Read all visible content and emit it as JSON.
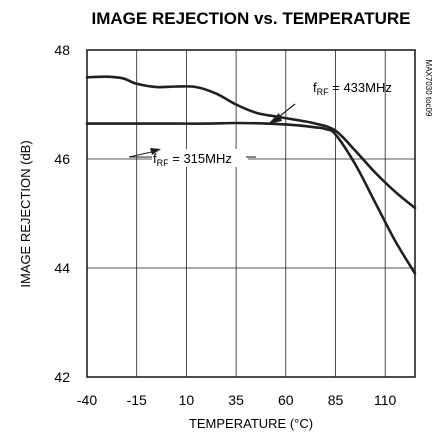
{
  "chart_data": {
    "type": "line",
    "title": "IMAGE REJECTION vs. TEMPERATURE",
    "xlabel": "TEMPERATURE (°C)",
    "ylabel": "IMAGE REJECTION (dB)",
    "xlim": [
      -40,
      125
    ],
    "ylim": [
      42,
      48
    ],
    "x_ticks": [
      -40,
      -15,
      10,
      35,
      60,
      85,
      110
    ],
    "x_tick_labels": [
      "-40",
      "-15",
      "10",
      "35",
      "60",
      "85",
      "110"
    ],
    "y_ticks": [
      42,
      44,
      46,
      48
    ],
    "y_tick_labels": [
      "42",
      "44",
      "46",
      "48"
    ],
    "grid": true,
    "series": [
      {
        "name": "fRF = 433MHz",
        "x": [
          -40,
          -30,
          -22,
          -15,
          -5,
          5,
          15,
          25,
          35,
          45,
          55,
          65,
          75,
          85,
          95,
          105,
          115,
          125
        ],
        "y": [
          47.5,
          47.51,
          47.48,
          47.38,
          47.32,
          47.33,
          47.32,
          47.2,
          47.0,
          46.85,
          46.78,
          46.72,
          46.65,
          46.52,
          46.15,
          45.75,
          45.4,
          45.1
        ]
      },
      {
        "name": "fRF = 315MHz",
        "x": [
          -40,
          -25,
          -10,
          5,
          20,
          35,
          50,
          65,
          75,
          80,
          85,
          95,
          105,
          115,
          125
        ],
        "y": [
          46.65,
          46.65,
          46.65,
          46.65,
          46.65,
          46.66,
          46.65,
          46.62,
          46.58,
          46.55,
          46.45,
          45.9,
          45.2,
          44.5,
          43.9
        ]
      }
    ],
    "annotations": [
      {
        "label_main": "f",
        "label_sub": "RF",
        "label_rest": " = 433MHz"
      },
      {
        "label_main": "f",
        "label_sub": "RF",
        "label_rest": " = 315MHz"
      }
    ],
    "side_label": "MAX7030 toc09"
  }
}
